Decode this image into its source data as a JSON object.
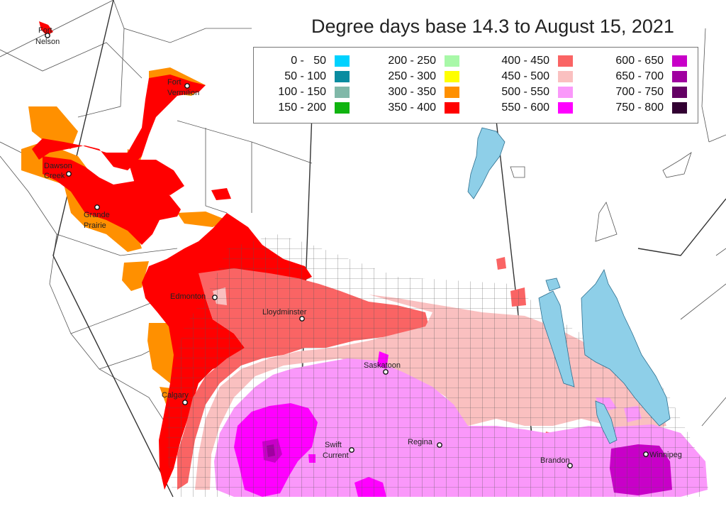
{
  "title": "Degree days base 14.3 to August 15, 2021",
  "legend": {
    "items": [
      {
        "range": "0 -   50",
        "color": "#00d2ff"
      },
      {
        "range": "50 - 100",
        "color": "#0a8ca0"
      },
      {
        "range": "100 - 150",
        "color": "#80b8a8"
      },
      {
        "range": "150 - 200",
        "color": "#10b410"
      },
      {
        "range": "200 - 250",
        "color": "#a8f8a8"
      },
      {
        "range": "250 - 300",
        "color": "#ffff00"
      },
      {
        "range": "300 - 350",
        "color": "#ff9000"
      },
      {
        "range": "350 - 400",
        "color": "#ff0000"
      },
      {
        "range": "400 - 450",
        "color": "#fa6464"
      },
      {
        "range": "450 - 500",
        "color": "#fac0c0"
      },
      {
        "range": "500 - 550",
        "color": "#fa98fa"
      },
      {
        "range": "550 - 600",
        "color": "#ff00ff"
      },
      {
        "range": "600 - 650",
        "color": "#c800c8"
      },
      {
        "range": "650 - 700",
        "color": "#a000a0"
      },
      {
        "range": "700 - 750",
        "color": "#640064"
      },
      {
        "range": "750 - 800",
        "color": "#320032"
      }
    ]
  },
  "cities": [
    {
      "name": "Fort Nelson",
      "line1": "Fort",
      "line2": "Nelson"
    },
    {
      "name": "Fort Vermilion",
      "line1": "Fort",
      "line2": "Vermilion"
    },
    {
      "name": "Dawson Creek",
      "line1": "Dawson",
      "line2": "Creek"
    },
    {
      "name": "Grande Prairie",
      "line1": "Grande",
      "line2": "Prairie"
    },
    {
      "name": "Edmonton",
      "line1": "Edmonton",
      "line2": ""
    },
    {
      "name": "Lloydminster",
      "line1": "Lloydminster",
      "line2": ""
    },
    {
      "name": "Saskatoon",
      "line1": "Saskatoon",
      "line2": ""
    },
    {
      "name": "Calgary",
      "line1": "Calgary",
      "line2": ""
    },
    {
      "name": "Swift Current",
      "line1": "Swift",
      "line2": "Current"
    },
    {
      "name": "Regina",
      "line1": "Regina",
      "line2": ""
    },
    {
      "name": "Brandon",
      "line1": "Brandon",
      "line2": ""
    },
    {
      "name": "Winnipeg",
      "line1": "Winnipeg",
      "line2": ""
    }
  ],
  "colors": {
    "water": "#8ecfe8",
    "boundary": "#333333",
    "grid": "#555555"
  }
}
